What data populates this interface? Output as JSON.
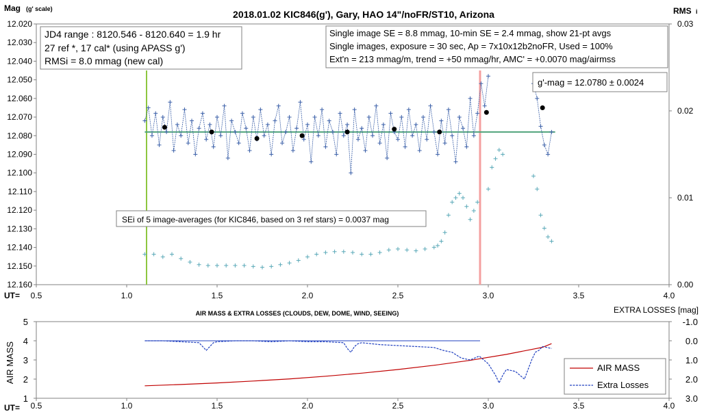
{
  "main_chart": {
    "title": "2018.01.02  KIC846(g'),  Gary, HAO 14\"/noFR/ST10,  Arizona",
    "ylabel_main": "Mag",
    "ylabel_sub": "(g' scale)",
    "y2label_main": "RMS",
    "y2label_sub": "i",
    "xlabel": "UT=",
    "yticks": [
      "12.020",
      "12.030",
      "12.040",
      "12.050",
      "12.060",
      "12.070",
      "12.080",
      "12.090",
      "12.100",
      "12.110",
      "12.120",
      "12.130",
      "12.140",
      "12.150",
      "12.160"
    ],
    "y2ticks": [
      "0.03",
      "0.02",
      "0.01",
      "0.00"
    ],
    "xticks": [
      "0.5",
      "1.0",
      "1.5",
      "2.0",
      "2.5",
      "3.0",
      "3.5",
      "4.0"
    ],
    "info_box_1": [
      "JD4 range : 8120.546 - 8120.640 = 1.9  hr",
      "27 ref *, 17 cal* (using APASS g')",
      "RMSi = 8.0 mmag (new cal)"
    ],
    "info_box_2": [
      "Single image SE = 8.8 mmag, 10-min SE = 2.4 mmag, show  21-pt avgs",
      "Single images, exposure = 30 sec, Ap = 7x10x12b2noFR,  Used = 100%",
      "Ext'n = 213 mmag/m, trend =  +50 mmag/hr, AMC' = +0.0070 mag/airmss"
    ],
    "gmag_box": "g'-mag = 12.0780 ± 0.0024",
    "sei_box": "SEi of 5 image-averages (for KIC846, based on 3 ref stars) = 0.0037 mag"
  },
  "lower_chart": {
    "title": "AIR MASS & EXTRA LOSSES (CLOUDS, DEW, DOME, WIND, SEEING)",
    "ylabel": "AIR MASS",
    "y2label": "EXTRA LOSSES [mag]",
    "xlabel": "UT=",
    "yticks": [
      "5",
      "4",
      "3",
      "2",
      "1"
    ],
    "y2ticks": [
      "-1.0",
      "0.0",
      "1.0",
      "2.0",
      "3.0"
    ],
    "xticks": [
      "0.5",
      "1.0",
      "1.5",
      "2.0",
      "2.5",
      "3.0",
      "3.5",
      "4.0"
    ],
    "legend": [
      "AIR MASS",
      "Extra Losses"
    ]
  },
  "colors": {
    "single_points": "#3a5fa8",
    "rms_points": "#5aa9b8",
    "mean_line": "#4fa37a",
    "start_line": "#8dc63f",
    "end_line": "#f4a0a0",
    "air_mass": "#c00000",
    "extra_losses": "#1f3fbf"
  },
  "chart_data": [
    {
      "type": "scatter",
      "title": "2018.01.02  KIC846(g'),  Gary, HAO 14\"/noFR/ST10,  Arizona",
      "xlabel": "UT=",
      "ylabel": "Mag (g' scale)",
      "y2label": "RMSi",
      "xlim": [
        0.5,
        4.0
      ],
      "ylim": [
        12.16,
        12.02
      ],
      "y2lim": [
        0.0,
        0.03
      ],
      "grid": false,
      "mean_mag": 12.078,
      "start_ut": 1.1,
      "end_ut": 2.95,
      "series": [
        {
          "values_note": "single_image_mag",
          "x": [
            1.1,
            1.12,
            1.14,
            1.16,
            1.18,
            1.2,
            1.22,
            1.24,
            1.26,
            1.28,
            1.3,
            1.32,
            1.34,
            1.36,
            1.38,
            1.4,
            1.42,
            1.44,
            1.46,
            1.48,
            1.5,
            1.52,
            1.54,
            1.56,
            1.58,
            1.6,
            1.62,
            1.64,
            1.66,
            1.68,
            1.7,
            1.72,
            1.74,
            1.76,
            1.78,
            1.8,
            1.82,
            1.84,
            1.86,
            1.88,
            1.9,
            1.92,
            1.94,
            1.96,
            1.98,
            2.0,
            2.02,
            2.04,
            2.06,
            2.08,
            2.1,
            2.12,
            2.14,
            2.16,
            2.18,
            2.2,
            2.22,
            2.24,
            2.26,
            2.28,
            2.3,
            2.32,
            2.34,
            2.36,
            2.38,
            2.4,
            2.42,
            2.44,
            2.46,
            2.48,
            2.5,
            2.52,
            2.54,
            2.56,
            2.58,
            2.6,
            2.62,
            2.64,
            2.66,
            2.68,
            2.7,
            2.72,
            2.74,
            2.76,
            2.78,
            2.8,
            2.82,
            2.84,
            2.86,
            2.88,
            2.9,
            2.92,
            2.94,
            2.96,
            2.98,
            3.0,
            3.25,
            3.27,
            3.29,
            3.31,
            3.33,
            3.35
          ],
          "y": [
            12.072,
            12.065,
            12.08,
            12.068,
            12.085,
            12.07,
            12.078,
            12.062,
            12.088,
            12.074,
            12.08,
            12.066,
            12.084,
            12.072,
            12.09,
            12.076,
            12.068,
            12.082,
            12.074,
            12.086,
            12.07,
            12.08,
            12.064,
            12.092,
            12.072,
            12.078,
            12.084,
            12.068,
            12.076,
            12.088,
            12.07,
            12.082,
            12.066,
            12.08,
            12.074,
            12.09,
            12.072,
            12.064,
            12.084,
            12.078,
            12.07,
            12.088,
            12.076,
            12.062,
            12.082,
            12.074,
            12.094,
            12.07,
            12.08,
            12.066,
            12.086,
            12.072,
            12.078,
            12.09,
            12.068,
            12.08,
            12.074,
            12.1,
            12.066,
            12.082,
            12.076,
            12.088,
            12.07,
            12.08,
            12.064,
            12.084,
            12.074,
            12.092,
            12.068,
            12.078,
            12.082,
            12.07,
            12.086,
            12.066,
            12.08,
            12.074,
            12.088,
            12.07,
            12.082,
            12.064,
            12.078,
            12.09,
            12.072,
            12.084,
            12.066,
            12.08,
            12.094,
            12.07,
            12.076,
            12.086,
            12.06,
            12.08,
            12.068,
            12.052,
            12.064,
            12.048,
            12.052,
            12.06,
            12.075,
            12.085,
            12.09,
            12.078
          ]
        },
        {
          "values_note": "averages_21pt",
          "x": [
            1.21,
            1.47,
            1.72,
            1.97,
            2.22,
            2.48,
            2.73,
            2.99,
            3.3
          ],
          "y": [
            12.0755,
            12.078,
            12.0815,
            12.08,
            12.078,
            12.0765,
            12.078,
            12.0675,
            12.065
          ]
        },
        {
          "values_note": "rms_i",
          "x": [
            1.1,
            1.15,
            1.2,
            1.25,
            1.3,
            1.35,
            1.4,
            1.45,
            1.5,
            1.55,
            1.6,
            1.65,
            1.7,
            1.75,
            1.8,
            1.85,
            1.9,
            1.95,
            2.0,
            2.05,
            2.1,
            2.15,
            2.2,
            2.25,
            2.3,
            2.35,
            2.4,
            2.45,
            2.5,
            2.55,
            2.6,
            2.65,
            2.7,
            2.72,
            2.74,
            2.76,
            2.78,
            2.8,
            2.82,
            2.84,
            2.86,
            2.88,
            2.9,
            2.92,
            2.94,
            3.0,
            3.02,
            3.04,
            3.06,
            3.08,
            3.25,
            3.27,
            3.29,
            3.31,
            3.33,
            3.35
          ],
          "y": [
            0.0035,
            0.0035,
            0.0032,
            0.0035,
            0.003,
            0.0026,
            0.0023,
            0.0022,
            0.0022,
            0.0022,
            0.0022,
            0.0022,
            0.0021,
            0.002,
            0.0021,
            0.0023,
            0.0025,
            0.0028,
            0.0032,
            0.0035,
            0.0037,
            0.0038,
            0.0038,
            0.0037,
            0.0035,
            0.0035,
            0.0037,
            0.004,
            0.0041,
            0.004,
            0.0039,
            0.0041,
            0.0043,
            0.0045,
            0.005,
            0.006,
            0.008,
            0.0095,
            0.01,
            0.0105,
            0.01,
            0.009,
            0.0075,
            0.0085,
            0.0095,
            0.011,
            0.0135,
            0.0145,
            0.0155,
            0.015,
            0.0125,
            0.011,
            0.008,
            0.0065,
            0.0055,
            0.005
          ]
        }
      ]
    },
    {
      "type": "line",
      "title": "AIR MASS & EXTRA LOSSES (CLOUDS, DEW, DOME, WIND, SEEING)",
      "xlabel": "UT=",
      "ylabel": "AIR MASS",
      "y2label": "EXTRA LOSSES [mag]",
      "xlim": [
        0.5,
        4.0
      ],
      "ylim": [
        1,
        5
      ],
      "y2lim": [
        3.0,
        -1.0
      ],
      "legend": "right",
      "series": [
        {
          "name": "AIR MASS",
          "x": [
            1.1,
            1.3,
            1.5,
            1.7,
            1.9,
            2.1,
            2.3,
            2.5,
            2.7,
            2.9,
            3.1,
            3.3,
            3.35
          ],
          "y": [
            1.65,
            1.72,
            1.8,
            1.9,
            2.01,
            2.15,
            2.31,
            2.5,
            2.72,
            2.98,
            3.29,
            3.66,
            3.85
          ]
        },
        {
          "name": "Extra Losses",
          "x": [
            1.1,
            1.2,
            1.3,
            1.4,
            1.42,
            1.44,
            1.46,
            1.48,
            1.5,
            1.6,
            1.7,
            1.8,
            1.9,
            2.0,
            2.1,
            2.2,
            2.22,
            2.24,
            2.26,
            2.28,
            2.3,
            2.4,
            2.5,
            2.6,
            2.7,
            2.75,
            2.8,
            2.85,
            2.9,
            2.95,
            3.0,
            3.02,
            3.04,
            3.06,
            3.08,
            3.1,
            3.15,
            3.2,
            3.22,
            3.24,
            3.26,
            3.28,
            3.3,
            3.35
          ],
          "y": [
            0.0,
            0.0,
            0.05,
            0.1,
            0.3,
            0.5,
            0.3,
            0.1,
            0.05,
            0.0,
            0.0,
            0.05,
            0.0,
            0.05,
            0.05,
            0.1,
            0.4,
            0.6,
            0.3,
            0.15,
            0.1,
            0.2,
            0.25,
            0.3,
            0.35,
            0.5,
            0.6,
            0.9,
            1.0,
            0.8,
            1.2,
            1.5,
            1.8,
            2.2,
            1.8,
            1.5,
            1.6,
            2.0,
            1.5,
            1.0,
            0.6,
            0.5,
            0.3,
            0.4
          ]
        }
      ]
    }
  ]
}
